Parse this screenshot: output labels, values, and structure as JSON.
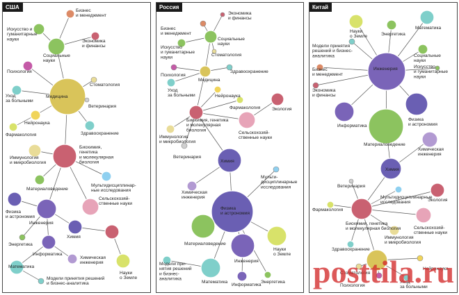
{
  "colors": {
    "edge": "#555555",
    "node_stroke": "#ffffff",
    "label": "#222222",
    "gold": "#d9c45a",
    "purple": "#7a64b8",
    "indigo": "#6a5fb3",
    "crimson": "#c96171",
    "green": "#8cc35f",
    "teal": "#7fcfca",
    "pink": "#e7a4b8",
    "lilac": "#b29ad2",
    "orange": "#dc8a66",
    "yellowgreen": "#d8e26a",
    "khaki": "#e9dc98",
    "lightblue": "#8fd0f0",
    "yellow": "#f0d45a",
    "magenta": "#c45aa7",
    "grey": "#cfcfcf"
  },
  "panels": [
    {
      "tag": "США",
      "nodes": [
        {
          "id": "u_biz",
          "label": [
            "Бизнес",
            "и менеджмент"
          ],
          "color": "orange"
        },
        {
          "id": "u_art",
          "label": [
            "Искусство и",
            "гуманитарные",
            "науки"
          ],
          "color": "green"
        },
        {
          "id": "u_soc",
          "label": [
            "Социальные",
            "науки"
          ],
          "color": "green"
        },
        {
          "id": "u_econ",
          "label": [
            "Экономика",
            "и финансы"
          ],
          "color": "crimson"
        },
        {
          "id": "u_psy",
          "label": [
            "Психология"
          ],
          "color": "magenta"
        },
        {
          "id": "u_dent",
          "label": [
            "Стоматология"
          ],
          "color": "khaki"
        },
        {
          "id": "u_care",
          "label": [
            "Уход",
            "за больными"
          ],
          "color": "teal"
        },
        {
          "id": "u_med",
          "label": [
            "Медицина"
          ],
          "color": "gold"
        },
        {
          "id": "u_vet",
          "label": [
            "Ветеринария"
          ],
          "color": "grey"
        },
        {
          "id": "u_neuro",
          "label": [
            "Нейронаука"
          ],
          "color": "yellow"
        },
        {
          "id": "u_pharm",
          "label": [
            "Фармакология"
          ],
          "color": "yellowgreen"
        },
        {
          "id": "u_health",
          "label": [
            "Здравоохранение"
          ],
          "color": "teal"
        },
        {
          "id": "u_immuno",
          "label": [
            "Иммунология",
            "и микробиология"
          ],
          "color": "khaki"
        },
        {
          "id": "u_bio",
          "label": [
            "Биохимия,",
            "генетика",
            "и молекулярная",
            "биология"
          ],
          "color": "crimson"
        },
        {
          "id": "u_mat",
          "label": [
            "Материаловедение"
          ],
          "color": "green"
        },
        {
          "id": "u_multi",
          "label": [
            "Мультидисциплинар-",
            "ные исследования"
          ],
          "color": "lightblue"
        },
        {
          "id": "u_phys",
          "label": [
            "Физика",
            "и астрономия"
          ],
          "color": "indigo"
        },
        {
          "id": "u_eng",
          "label": [
            "Инженерия"
          ],
          "color": "purple"
        },
        {
          "id": "u_agri",
          "label": [
            "Сельскохозяй-",
            "ственные науки"
          ],
          "color": "pink"
        },
        {
          "id": "u_chem",
          "label": [
            "Химия"
          ],
          "color": "indigo"
        },
        {
          "id": "u_energy",
          "label": [
            "Энергетика"
          ],
          "color": "green"
        },
        {
          "id": "u_inf",
          "label": [
            "Информатика"
          ],
          "color": "purple"
        },
        {
          "id": "u_env",
          "label": [
            "Экология"
          ],
          "color": "crimson"
        },
        {
          "id": "u_cheng",
          "label": [
            "Химическая",
            "инженерия"
          ],
          "color": "lilac"
        },
        {
          "id": "u_math",
          "label": [
            "Математика"
          ],
          "color": "teal"
        },
        {
          "id": "u_dec",
          "label": [
            "Модели принятия решений",
            "и бизнес-аналитика"
          ],
          "color": "teal"
        },
        {
          "id": "u_earth",
          "label": [
            "Науки",
            "о Земле"
          ],
          "color": "yellowgreen"
        }
      ]
    },
    {
      "tag": "Россия",
      "nodes": [
        {
          "id": "r_econ",
          "label": [
            "Экономика",
            "и финансы"
          ],
          "color": "crimson"
        },
        {
          "id": "r_biz",
          "label": [
            "Бизнес",
            "и менеджмент"
          ],
          "color": "orange"
        },
        {
          "id": "r_soc",
          "label": [
            "Социальные",
            "науки"
          ],
          "color": "green"
        },
        {
          "id": "r_art",
          "label": [
            "Искусство",
            "и гуманитарные",
            "науки"
          ],
          "color": "green"
        },
        {
          "id": "r_dent",
          "label": [
            "Стоматология"
          ],
          "color": "khaki"
        },
        {
          "id": "r_health",
          "label": [
            "Здравоохранение"
          ],
          "color": "teal"
        },
        {
          "id": "r_psy",
          "label": [
            "Психология"
          ],
          "color": "magenta"
        },
        {
          "id": "r_med",
          "label": [
            "Медицина"
          ],
          "color": "gold"
        },
        {
          "id": "r_care",
          "label": [
            "Уход",
            "за больными"
          ],
          "color": "teal"
        },
        {
          "id": "r_neuro",
          "label": [
            "Нейронаука"
          ],
          "color": "yellow"
        },
        {
          "id": "r_pharm",
          "label": [
            "Фармакология"
          ],
          "color": "yellowgreen"
        },
        {
          "id": "r_env",
          "label": [
            "Экология"
          ],
          "color": "crimson"
        },
        {
          "id": "r_bio",
          "label": [
            "Биохимия, генетика",
            "и молекулярная",
            "биология"
          ],
          "color": "crimson"
        },
        {
          "id": "r_immuno",
          "label": [
            "Иммунология",
            "и микробиология"
          ],
          "color": "khaki"
        },
        {
          "id": "r_agri",
          "label": [
            "Сельскохозяй-",
            "ственные науки"
          ],
          "color": "pink"
        },
        {
          "id": "r_vet",
          "label": [
            "Ветеринария"
          ],
          "color": "grey"
        },
        {
          "id": "r_chem",
          "label": [
            "Химия"
          ],
          "color": "indigo"
        },
        {
          "id": "r_multi",
          "label": [
            "Мульти-",
            "дисциплинарные",
            "исследования"
          ],
          "color": "lightblue"
        },
        {
          "id": "r_cheng",
          "label": [
            "Химическая",
            "инженерия"
          ],
          "color": "lilac"
        },
        {
          "id": "r_phys",
          "label": [
            "Физика",
            "и астрономия"
          ],
          "color": "indigo"
        },
        {
          "id": "r_mat",
          "label": [
            "Материаловедение"
          ],
          "color": "green"
        },
        {
          "id": "r_earth",
          "label": [
            "Науки",
            "о Земле"
          ],
          "color": "yellowgreen"
        },
        {
          "id": "r_eng",
          "label": [
            "Инженерия"
          ],
          "color": "purple"
        },
        {
          "id": "r_dec",
          "label": [
            "Модели при-",
            "нятия решений",
            "и бизнес-",
            "аналитика"
          ],
          "color": "teal"
        },
        {
          "id": "r_math",
          "label": [
            "Математика"
          ],
          "color": "teal"
        },
        {
          "id": "r_inf",
          "label": [
            "Информатика"
          ],
          "color": "purple"
        },
        {
          "id": "r_energy",
          "label": [
            "Энергетика"
          ],
          "color": "green"
        }
      ]
    },
    {
      "tag": "Китай",
      "nodes": [
        {
          "id": "c_earth",
          "label": [
            "Науки",
            "о Земле"
          ],
          "color": "yellowgreen"
        },
        {
          "id": "c_energy",
          "label": [
            "Энергетика"
          ],
          "color": "green"
        },
        {
          "id": "c_math",
          "label": [
            "Математика"
          ],
          "color": "teal"
        },
        {
          "id": "c_dec",
          "label": [
            "Модели принятия",
            "решений и бизнес-",
            "аналитика"
          ],
          "color": "teal"
        },
        {
          "id": "c_soc",
          "label": [
            "Социальные",
            "науки"
          ],
          "color": "green"
        },
        {
          "id": "c_biz",
          "label": [
            "Бизнес",
            "и менеджмент"
          ],
          "color": "orange"
        },
        {
          "id": "c_eng",
          "label": [
            "Инженерия"
          ],
          "color": "purple"
        },
        {
          "id": "c_art",
          "label": [
            "Искусство",
            "и гуманитарные",
            "науки"
          ],
          "color": "green"
        },
        {
          "id": "c_econ",
          "label": [
            "Экономика",
            "и финансы"
          ],
          "color": "crimson"
        },
        {
          "id": "c_inf",
          "label": [
            "Информатика"
          ],
          "color": "purple"
        },
        {
          "id": "c_phys",
          "label": [
            "Физика",
            "и астрономия"
          ],
          "color": "indigo"
        },
        {
          "id": "c_mat",
          "label": [
            "Материаловедение"
          ],
          "color": "green"
        },
        {
          "id": "c_cheng",
          "label": [
            "Химическая",
            "инженерия"
          ],
          "color": "lilac"
        },
        {
          "id": "c_chem",
          "label": [
            "Химия"
          ],
          "color": "indigo"
        },
        {
          "id": "c_vet",
          "label": [
            "Ветеринария"
          ],
          "color": "grey"
        },
        {
          "id": "c_multi",
          "label": [
            "Мультидисциплинарные",
            "исследования"
          ],
          "color": "lightblue"
        },
        {
          "id": "c_env",
          "label": [
            "Экология"
          ],
          "color": "crimson"
        },
        {
          "id": "c_pharm",
          "label": [
            "Фармакология"
          ],
          "color": "yellowgreen"
        },
        {
          "id": "c_bio",
          "label": [
            "Биохимия, генетика",
            "и молекулярная биология"
          ],
          "color": "crimson"
        },
        {
          "id": "c_agri",
          "label": [
            "Сельскохозяй-",
            "ственные науки"
          ],
          "color": "pink"
        },
        {
          "id": "c_immuno",
          "label": [
            "Иммунология",
            "и микробиология"
          ],
          "color": "khaki"
        },
        {
          "id": "c_health",
          "label": [
            "Здравоохранение"
          ],
          "color": "teal"
        },
        {
          "id": "c_med",
          "label": [
            "Медицина"
          ],
          "color": "gold"
        },
        {
          "id": "c_dent",
          "label": [
            "Стоматология"
          ],
          "color": "khaki"
        },
        {
          "id": "c_neuro",
          "label": [
            "Нейронаука"
          ],
          "color": "yellow"
        },
        {
          "id": "c_psy",
          "label": [
            "Психология"
          ],
          "color": "magenta"
        },
        {
          "id": "c_care",
          "label": [
            "Уход",
            "за больными"
          ],
          "color": "teal"
        }
      ]
    }
  ],
  "watermark": "posttila.ru"
}
